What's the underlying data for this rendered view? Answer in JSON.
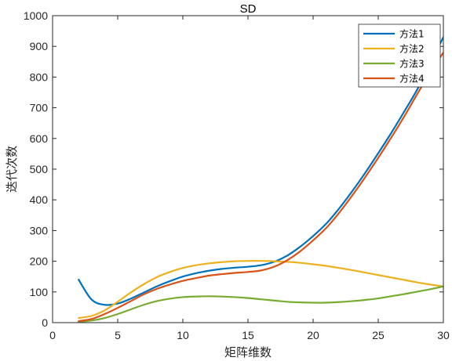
{
  "chart_data": {
    "type": "line",
    "title": "SD",
    "xlabel": "矩阵维数",
    "ylabel": "迭代次数",
    "xlim": [
      0,
      30
    ],
    "ylim": [
      0,
      1000
    ],
    "xticks": [
      0,
      5,
      10,
      15,
      20,
      25,
      30
    ],
    "yticks": [
      0,
      100,
      200,
      300,
      400,
      500,
      600,
      700,
      800,
      900,
      1000
    ],
    "grid": false,
    "legend_position": "top-right",
    "series": [
      {
        "name": "方法1",
        "color": "#0072BD",
        "x": [
          2,
          3,
          4,
          5,
          6,
          7,
          8,
          9,
          10,
          11,
          12,
          13,
          14,
          15,
          16,
          17,
          18,
          19,
          20,
          21,
          22,
          23,
          24,
          25,
          26,
          27,
          28,
          29,
          30
        ],
        "y": [
          140,
          75,
          58,
          62,
          78,
          98,
          118,
          135,
          150,
          161,
          169,
          175,
          179,
          182,
          187,
          198,
          218,
          247,
          282,
          322,
          372,
          428,
          488,
          552,
          618,
          688,
          760,
          845,
          930
        ]
      },
      {
        "name": "方法2",
        "color": "#EDB120",
        "x": [
          2,
          3,
          4,
          5,
          6,
          7,
          8,
          9,
          10,
          11,
          12,
          13,
          14,
          15,
          16,
          17,
          18,
          19,
          20,
          21,
          22,
          23,
          24,
          25,
          26,
          27,
          28,
          29,
          30
        ],
        "y": [
          15,
          22,
          40,
          68,
          98,
          125,
          148,
          165,
          178,
          187,
          193,
          197,
          200,
          201,
          201,
          200,
          198,
          195,
          190,
          185,
          178,
          171,
          163,
          155,
          147,
          139,
          131,
          124,
          118
        ]
      },
      {
        "name": "方法3",
        "color": "#77AC30",
        "x": [
          2,
          3,
          4,
          5,
          6,
          7,
          8,
          9,
          10,
          11,
          12,
          13,
          14,
          15,
          16,
          17,
          18,
          19,
          20,
          21,
          22,
          23,
          24,
          25,
          26,
          27,
          28,
          29,
          30
        ],
        "y": [
          3,
          7,
          15,
          28,
          43,
          58,
          70,
          78,
          83,
          85,
          86,
          85,
          83,
          80,
          76,
          72,
          68,
          66,
          65,
          65,
          67,
          70,
          74,
          79,
          86,
          93,
          101,
          109,
          118
        ]
      },
      {
        "name": "方法4",
        "color": "#D95319",
        "x": [
          2,
          3,
          4,
          5,
          6,
          7,
          8,
          9,
          10,
          11,
          12,
          13,
          14,
          15,
          16,
          17,
          18,
          19,
          20,
          21,
          22,
          23,
          24,
          25,
          26,
          27,
          28,
          29,
          30
        ],
        "y": [
          5,
          12,
          28,
          48,
          70,
          92,
          110,
          124,
          136,
          145,
          153,
          158,
          162,
          165,
          170,
          182,
          203,
          232,
          268,
          308,
          358,
          414,
          474,
          537,
          603,
          672,
          745,
          815,
          880
        ]
      }
    ]
  }
}
